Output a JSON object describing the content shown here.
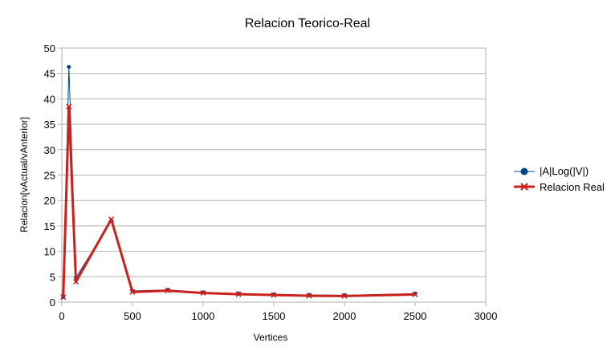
{
  "chart_data": {
    "type": "line",
    "title": "Relacion Teorico-Real",
    "xlabel": "Vertices",
    "ylabel": "Relacion[vActual/vAnterior]",
    "xlim": [
      0,
      3000
    ],
    "ylim": [
      0,
      50
    ],
    "x_ticks": [
      0,
      500,
      1000,
      1500,
      2000,
      2500,
      3000
    ],
    "y_ticks": [
      0,
      5,
      10,
      15,
      20,
      25,
      30,
      35,
      40,
      45,
      50
    ],
    "grid": "horizontal",
    "legend_position": "right",
    "series": [
      {
        "name": "|A|Log(|V|)",
        "color": "#004586",
        "marker": "circle",
        "x": [
          10,
          50,
          100,
          350,
          500,
          750,
          1000,
          1250,
          1500,
          1750,
          2000,
          2500
        ],
        "y": [
          1.0,
          46.3,
          4.8,
          16.0,
          2.2,
          2.4,
          1.9,
          1.7,
          1.5,
          1.4,
          1.35,
          1.65
        ]
      },
      {
        "name": "Relacion Real",
        "color": "#c9211e",
        "marker": "x",
        "x": [
          10,
          50,
          100,
          350,
          500,
          750,
          1000,
          1250,
          1500,
          1750,
          2000,
          2500
        ],
        "y": [
          1.0,
          38.5,
          4.0,
          16.3,
          2.0,
          2.25,
          1.8,
          1.55,
          1.4,
          1.25,
          1.2,
          1.5
        ]
      }
    ]
  }
}
